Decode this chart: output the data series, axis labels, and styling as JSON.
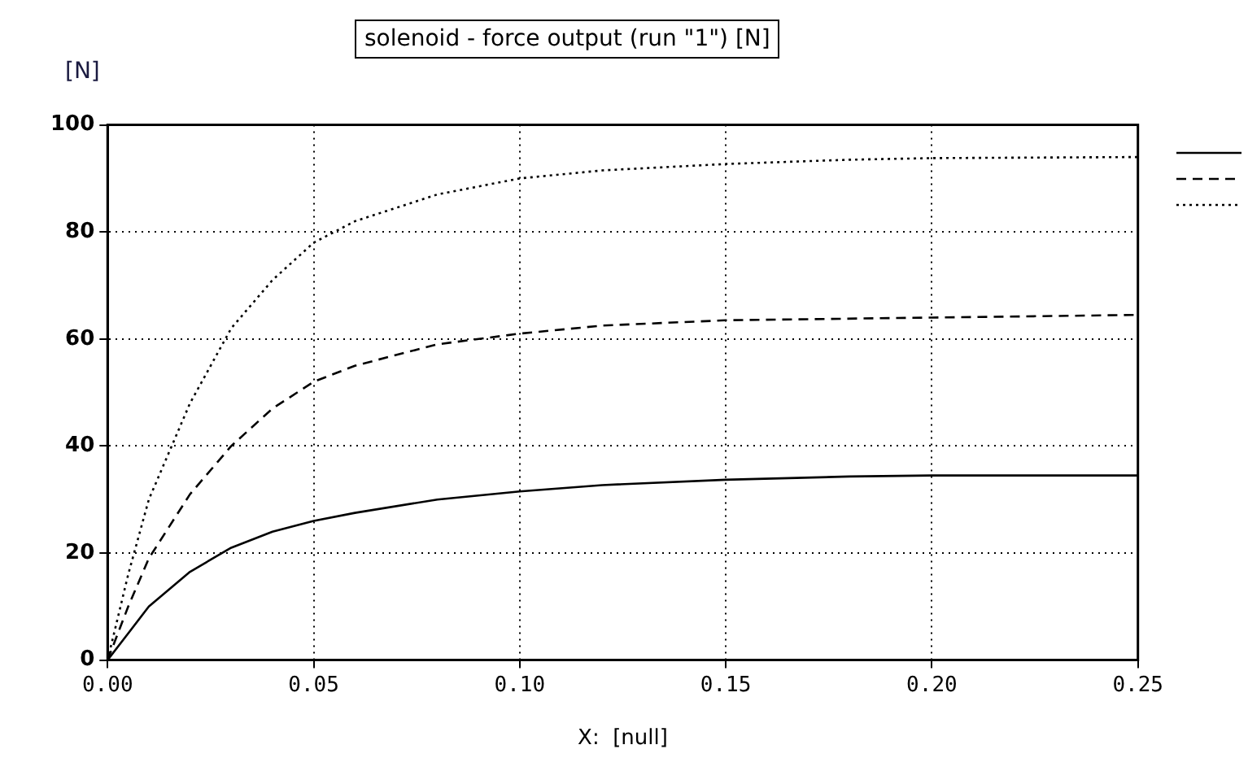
{
  "chart_data": {
    "type": "line",
    "title": "solenoid - force output (run \"1\") [N]",
    "ylabel": "[N]",
    "xlabel": "X:  [null]",
    "xlim": [
      0,
      0.25
    ],
    "xticks": [
      {
        "value": 0,
        "label": "0.00"
      },
      {
        "value": 0.05,
        "label": "0.05"
      },
      {
        "value": 0.1,
        "label": "0.10"
      },
      {
        "value": 0.15,
        "label": "0.15"
      },
      {
        "value": 0.2,
        "label": "0.20"
      },
      {
        "value": 0.25,
        "label": "0.25"
      }
    ],
    "ylim": [
      0,
      100
    ],
    "yticks": [
      0,
      20,
      40,
      60,
      80,
      100
    ],
    "grid": true,
    "marker": "none",
    "series": [
      {
        "color": "#000000",
        "line_style": "solid",
        "x": [
          0,
          0.005,
          0.01,
          0.02,
          0.03,
          0.04,
          0.05,
          0.06,
          0.08,
          0.1,
          0.12,
          0.15,
          0.18,
          0.2,
          0.25
        ],
        "values": [
          0,
          5,
          10,
          16.5,
          21,
          24,
          26,
          27.5,
          30,
          31.5,
          32.7,
          33.7,
          34.3,
          34.5,
          34.5
        ]
      },
      {
        "color": "#000000",
        "line_style": "dashed",
        "x": [
          0,
          0.005,
          0.01,
          0.02,
          0.03,
          0.04,
          0.05,
          0.06,
          0.08,
          0.1,
          0.12,
          0.15,
          0.2,
          0.25
        ],
        "values": [
          0,
          10,
          19,
          31,
          40,
          47,
          52,
          55,
          59,
          61,
          62.5,
          63.5,
          64,
          64.5
        ]
      },
      {
        "color": "#000000",
        "line_style": "dotted",
        "x": [
          0,
          0.005,
          0.01,
          0.02,
          0.03,
          0.04,
          0.05,
          0.06,
          0.08,
          0.1,
          0.12,
          0.15,
          0.18,
          0.2,
          0.25
        ],
        "values": [
          0,
          16,
          30,
          48,
          62,
          71,
          78,
          82,
          87,
          90,
          91.5,
          92.7,
          93.5,
          93.8,
          94
        ]
      }
    ]
  }
}
